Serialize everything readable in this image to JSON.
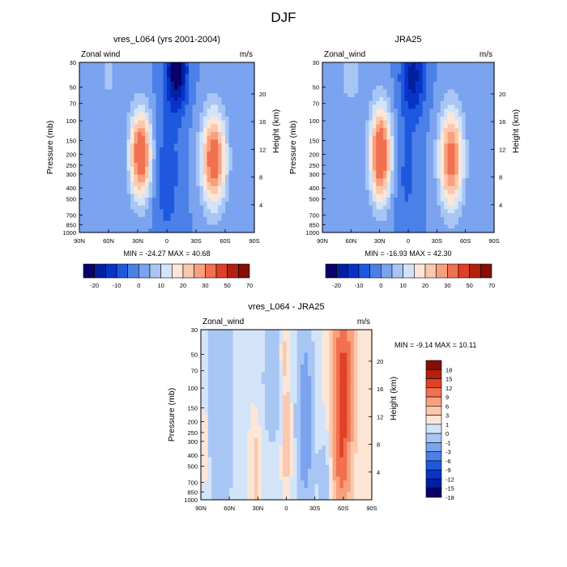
{
  "figure_title": "DJF",
  "chart_data": [
    {
      "type": "heatmap",
      "title": "vres_L064 (yrs 2001-2004)",
      "left_label": "Zonal wind",
      "right_label": "m/s",
      "xlabel": "",
      "ylabel": "Pressure (mb)",
      "ylabel_right": "Height (km)",
      "x_ticks": [
        "90N",
        "60N",
        "30N",
        "0",
        "30S",
        "60S",
        "90S"
      ],
      "y_ticks": [
        "30",
        "50",
        "70",
        "100",
        "150",
        "200",
        "250",
        "300",
        "400",
        "500",
        "700",
        "850",
        "1000"
      ],
      "y_ticks_right": [
        "20",
        "16",
        "12",
        "8",
        "4"
      ],
      "minmax_text": "MIN = -24.27   MAX =  40.68",
      "colorbar_labels": [
        "-20",
        "-10",
        "0",
        "10",
        "20",
        "30",
        "50",
        "70"
      ],
      "features": [
        {
          "lat": 27,
          "p": 200,
          "value": 38,
          "sigma_lat": 8,
          "sigma_logp": 0.28
        },
        {
          "lat": -48,
          "p": 220,
          "value": 36,
          "sigma_lat": 9,
          "sigma_logp": 0.3
        },
        {
          "lat": -10,
          "p": 35,
          "value": -24,
          "sigma_lat": 8,
          "sigma_logp": 0.25
        },
        {
          "lat": 0,
          "p": 300,
          "value": -8,
          "sigma_lat": 10,
          "sigma_logp": 0.45
        },
        {
          "lat": 60,
          "p": 40,
          "value": 6,
          "sigma_lat": 9,
          "sigma_logp": 0.2
        }
      ]
    },
    {
      "type": "heatmap",
      "title": "JRA25",
      "left_label": "Zonal_wind",
      "right_label": "m/s",
      "xlabel": "",
      "ylabel": "Pressure (mb)",
      "ylabel_right": "Height (km)",
      "x_ticks": [
        "90N",
        "60N",
        "30N",
        "0",
        "30S",
        "60S",
        "90S"
      ],
      "y_ticks": [
        "30",
        "50",
        "70",
        "100",
        "150",
        "200",
        "250",
        "300",
        "400",
        "500",
        "700",
        "850",
        "1000"
      ],
      "y_ticks_right": [
        "20",
        "16",
        "12",
        "8",
        "4"
      ],
      "minmax_text": "MIN = -16.93   MAX =  42.30",
      "colorbar_labels": [
        "-20",
        "-10",
        "0",
        "10",
        "20",
        "30",
        "50",
        "70"
      ],
      "features": [
        {
          "lat": 29,
          "p": 200,
          "value": 40,
          "sigma_lat": 8,
          "sigma_logp": 0.3
        },
        {
          "lat": -45,
          "p": 220,
          "value": 34,
          "sigma_lat": 9,
          "sigma_logp": 0.32
        },
        {
          "lat": -5,
          "p": 40,
          "value": -17,
          "sigma_lat": 9,
          "sigma_logp": 0.25
        },
        {
          "lat": 2,
          "p": 300,
          "value": -6,
          "sigma_lat": 9,
          "sigma_logp": 0.4
        },
        {
          "lat": 60,
          "p": 40,
          "value": 8,
          "sigma_lat": 9,
          "sigma_logp": 0.2
        }
      ]
    },
    {
      "type": "heatmap",
      "title": "vres_L064 - JRA25",
      "left_label": "Zonal_wind",
      "right_label": "m/s",
      "xlabel": "",
      "ylabel": "Pressure (mb)",
      "ylabel_right": "Height (km)",
      "x_ticks": [
        "90N",
        "60N",
        "30N",
        "0",
        "30S",
        "60S",
        "90S"
      ],
      "y_ticks": [
        "30",
        "50",
        "70",
        "100",
        "150",
        "200",
        "250",
        "300",
        "400",
        "500",
        "700",
        "850",
        "1000"
      ],
      "y_ticks_right": [
        "20",
        "16",
        "12",
        "8",
        "4"
      ],
      "minmax_text": "MIN =  -9.14   MAX =  10.11",
      "colorbar_labels": [
        "18",
        "15",
        "12",
        "9",
        "6",
        "3",
        "1",
        "0",
        "-1",
        "-3",
        "-6",
        "-9",
        "-12",
        "-15",
        "-18"
      ],
      "features": [
        {
          "lat": -60,
          "p": 80,
          "value": 10,
          "sigma_lat": 7,
          "sigma_logp": 0.55
        },
        {
          "lat": -58,
          "p": 500,
          "value": 5,
          "sigma_lat": 6,
          "sigma_logp": 0.35
        },
        {
          "lat": -20,
          "p": 200,
          "value": -5,
          "sigma_lat": 6,
          "sigma_logp": 0.6
        },
        {
          "lat": 0,
          "p": 250,
          "value": 3,
          "sigma_lat": 3,
          "sigma_logp": 0.3
        },
        {
          "lat": 2,
          "p": 50,
          "value": 2,
          "sigma_lat": 3,
          "sigma_logp": 0.15
        },
        {
          "lat": 32,
          "p": 500,
          "value": 2,
          "sigma_lat": 3,
          "sigma_logp": 0.25
        },
        {
          "lat": 85,
          "p": 300,
          "value": 1.5,
          "sigma_lat": 3,
          "sigma_logp": 0.3
        },
        {
          "lat": 70,
          "p": 150,
          "value": -3,
          "sigma_lat": 10,
          "sigma_logp": 0.8
        },
        {
          "lat": 15,
          "p": 80,
          "value": -2,
          "sigma_lat": 8,
          "sigma_logp": 0.5
        },
        {
          "lat": -40,
          "p": 700,
          "value": -2,
          "sigma_lat": 5,
          "sigma_logp": 0.3
        }
      ]
    }
  ],
  "colormap": {
    "top": [
      "#08006b",
      "#0020a0",
      "#0833c8",
      "#1e58df",
      "#4a80e8",
      "#7ba3ef",
      "#a8c6f4",
      "#d4e4f8",
      "#fde6d6",
      "#fbc8ad",
      "#f7a07e",
      "#f1704f",
      "#df4026",
      "#b3200e",
      "#850e05"
    ],
    "bottom": [
      "#850e05",
      "#b3200e",
      "#df4026",
      "#f1704f",
      "#f7a07e",
      "#fbc8ad",
      "#fde6d6",
      "#d4e4f8",
      "#a8c6f4",
      "#7ba3ef",
      "#4a80e8",
      "#1e58df",
      "#0833c8",
      "#0020a0",
      "#08006b"
    ]
  }
}
